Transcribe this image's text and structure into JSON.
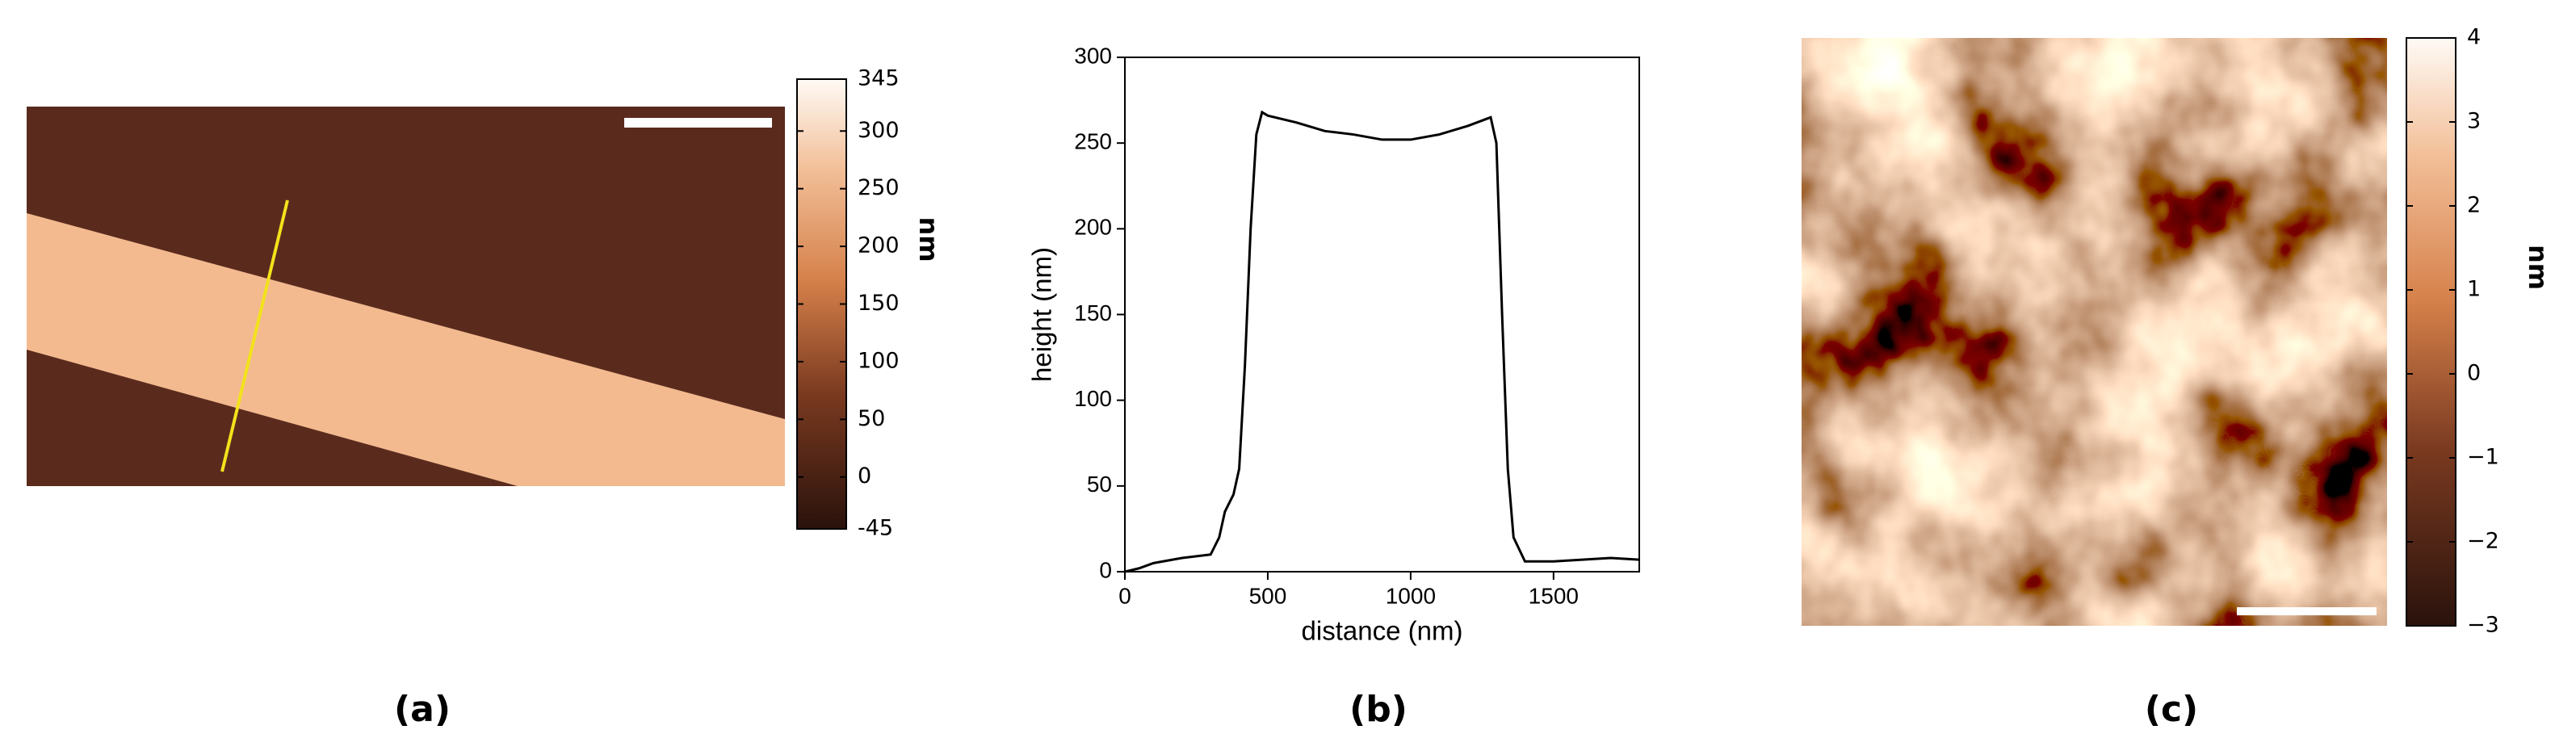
{
  "chart_data": [
    {
      "type": "image",
      "panel_label": "(a)",
      "colorbar_label": "nm",
      "clim": [
        -45,
        345
      ],
      "cticks": [
        345,
        300,
        250,
        200,
        150,
        100,
        50,
        0,
        -45
      ]
    },
    {
      "type": "line",
      "panel_label": "(b)",
      "xlabel": "distance (nm)",
      "ylabel": "height (nm)",
      "x": [
        0,
        50,
        100,
        200,
        300,
        330,
        350,
        380,
        400,
        420,
        440,
        460,
        480,
        500,
        600,
        700,
        800,
        900,
        1000,
        1100,
        1200,
        1280,
        1300,
        1320,
        1340,
        1360,
        1400,
        1500,
        1600,
        1700,
        1800
      ],
      "series": [
        {
          "color": "#000000",
          "values": [
            0,
            2,
            5,
            8,
            10,
            20,
            35,
            45,
            60,
            120,
            200,
            255,
            268,
            266,
            262,
            257,
            255,
            252,
            252,
            255,
            260,
            265,
            250,
            150,
            60,
            20,
            6,
            6,
            7,
            8,
            7
          ]
        }
      ],
      "xlim": [
        0,
        1800
      ],
      "ylim": [
        0,
        300
      ],
      "xticks": [
        0,
        500,
        1000,
        1500
      ],
      "yticks": [
        0,
        50,
        100,
        150,
        200,
        250,
        300
      ]
    },
    {
      "type": "image",
      "panel_label": "(c)",
      "colorbar_label": "nm",
      "clim": [
        -3,
        4
      ],
      "cticks": [
        4,
        3,
        2,
        1,
        0,
        {
          "value": -1,
          "label": "−1"
        },
        {
          "value": -2,
          "label": "−2"
        },
        {
          "value": -3,
          "label": "−3"
        }
      ]
    }
  ]
}
